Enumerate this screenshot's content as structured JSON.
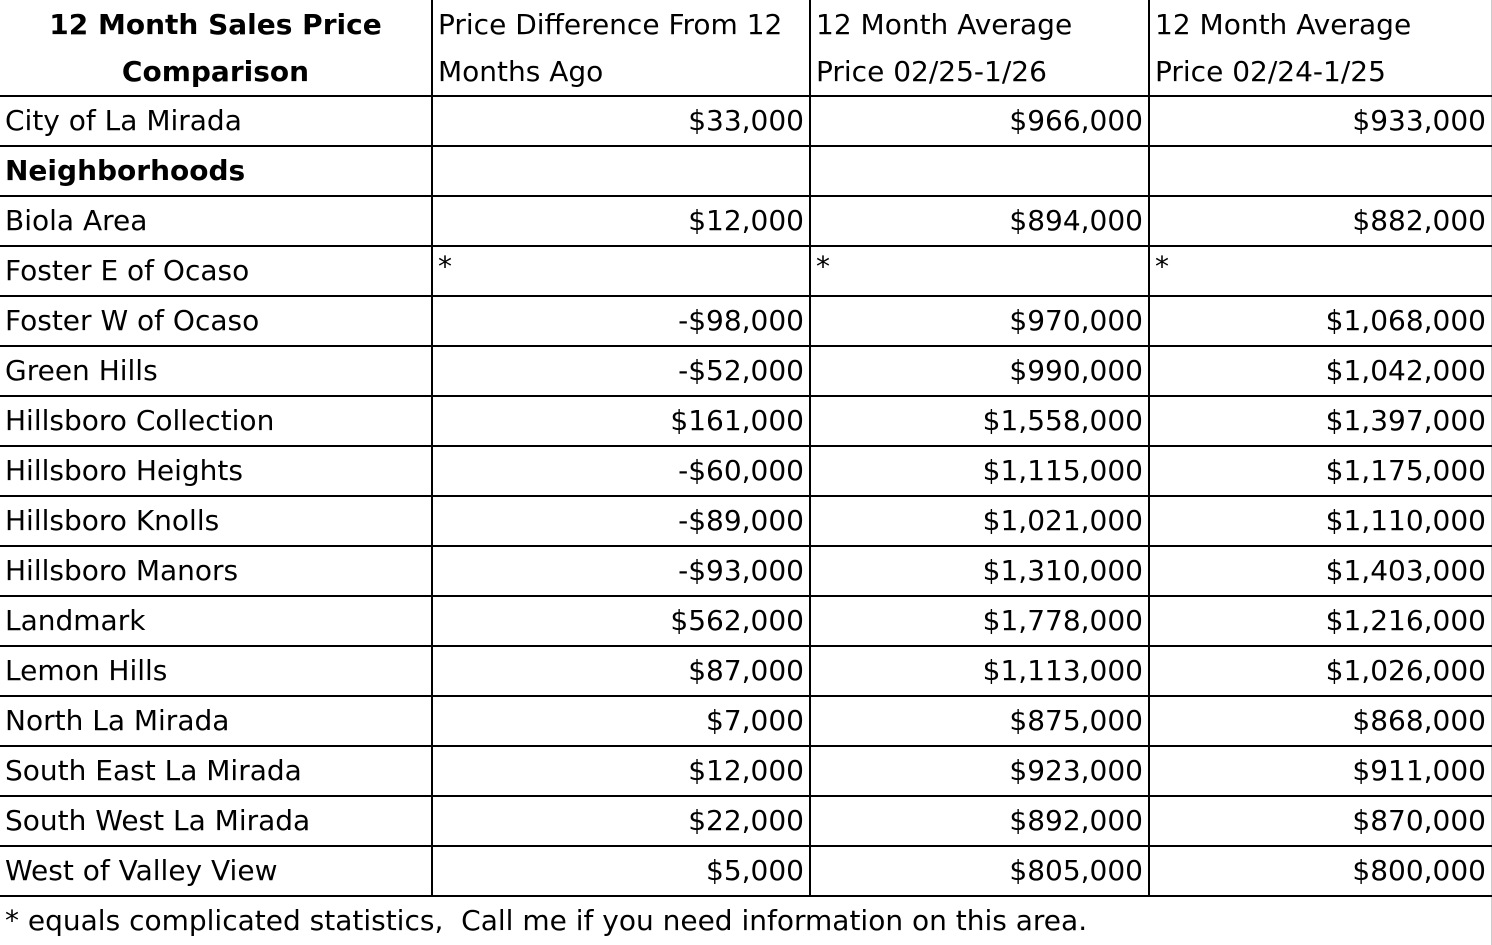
{
  "table": {
    "header": [
      "12 Month Sales Price Comparison",
      "Price Difference From 12 Months Ago",
      "12 Month Average Price 02/25-1/26",
      "12 Month Average Price 02/24-1/25"
    ],
    "rows": [
      [
        "City of La Mirada",
        "$33,000",
        "$966,000",
        "$933,000"
      ],
      [
        "Neighborhoods"
      ],
      [
        "Biola Area",
        "$12,000",
        "$894,000",
        "$882,000"
      ],
      [
        "Foster E of Ocaso",
        "*",
        "*",
        "*"
      ],
      [
        "Foster W of Ocaso",
        "-$98,000",
        "$970,000",
        "$1,068,000"
      ],
      [
        "Green Hills",
        "-$52,000",
        "$990,000",
        "$1,042,000"
      ],
      [
        "Hillsboro Collection",
        "$161,000",
        "$1,558,000",
        "$1,397,000"
      ],
      [
        "Hillsboro Heights",
        "-$60,000",
        "$1,115,000",
        "$1,175,000"
      ],
      [
        "Hillsboro Knolls",
        "-$89,000",
        "$1,021,000",
        "$1,110,000"
      ],
      [
        "Hillsboro Manors",
        "-$93,000",
        "$1,310,000",
        "$1,403,000"
      ],
      [
        "Landmark",
        "$562,000",
        "$1,778,000",
        "$1,216,000"
      ],
      [
        "Lemon Hills",
        "$87,000",
        "$1,113,000",
        "$1,026,000"
      ],
      [
        "North La Mirada",
        "$7,000",
        "$875,000",
        "$868,000"
      ],
      [
        "South East La Mirada",
        "$12,000",
        "$923,000",
        "$911,000"
      ],
      [
        "South West La Mirada",
        "$22,000",
        "$892,000",
        "$870,000"
      ],
      [
        "West of Valley View",
        "$5,000",
        "$805,000",
        "$800,000"
      ]
    ],
    "footnote": "* equals complicated statistics,  Call me if you need information on this area."
  }
}
